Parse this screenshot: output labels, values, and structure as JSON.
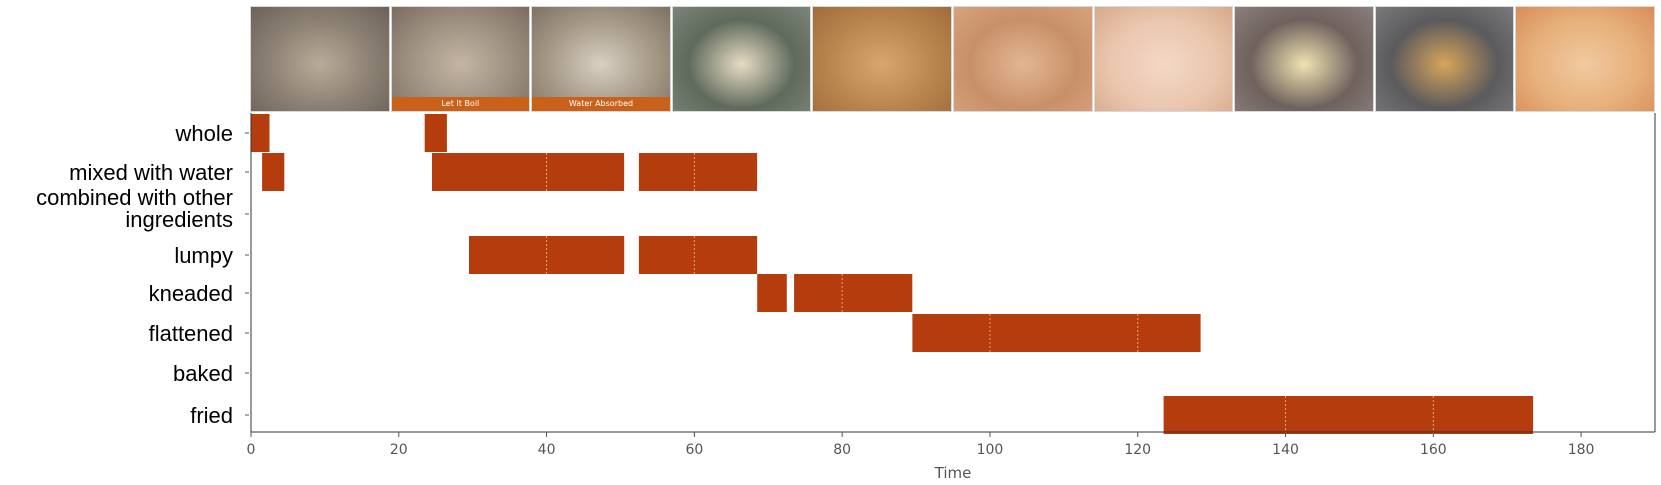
{
  "filmstrip": {
    "frames": [
      {
        "caption": "",
        "colors": [
          "#8a7f72",
          "#b9ab99",
          "#6b6258"
        ]
      },
      {
        "caption": "Let It Boil",
        "colors": [
          "#9c8f80",
          "#c4b6a3",
          "#7a6d60"
        ]
      },
      {
        "caption": "Water Absorbed",
        "colors": [
          "#a49886",
          "#d8cfc2",
          "#7d7263"
        ]
      },
      {
        "caption": "",
        "colors": [
          "#5f6a5c",
          "#e7dcc4",
          "#7b857a"
        ]
      },
      {
        "caption": "",
        "colors": [
          "#b9854e",
          "#d7a66d",
          "#a06b3a"
        ]
      },
      {
        "caption": "",
        "colors": [
          "#c89068",
          "#e3b694",
          "#d6a27d"
        ]
      },
      {
        "caption": "",
        "colors": [
          "#eac6ae",
          "#f3d8c6",
          "#d6a98a"
        ]
      },
      {
        "caption": "",
        "colors": [
          "#6f625e",
          "#efe3b0",
          "#8b7f7b"
        ]
      },
      {
        "caption": "",
        "colors": [
          "#5b5a5c",
          "#d7a55a",
          "#7a7a7c"
        ]
      },
      {
        "caption": "",
        "colors": [
          "#e6b07a",
          "#f1c9a0",
          "#d98c5a"
        ]
      }
    ]
  },
  "chart_data": {
    "type": "gantt",
    "xlabel": "Time",
    "xlim": [
      0,
      190
    ],
    "xticks": [
      0,
      20,
      40,
      60,
      80,
      100,
      120,
      140,
      160,
      180
    ],
    "bar_color": "#b53d0d",
    "rows": [
      {
        "label": "whole",
        "segments": [
          [
            0,
            2.5
          ],
          [
            23.5,
            26.5
          ]
        ]
      },
      {
        "label": "mixed with water",
        "segments": [
          [
            1.5,
            4.5
          ],
          [
            24.5,
            50.5
          ],
          [
            52.5,
            68.5
          ]
        ]
      },
      {
        "label": "combined with other ingredients",
        "segments": []
      },
      {
        "label": "lumpy",
        "segments": [
          [
            29.5,
            50.5
          ],
          [
            52.5,
            68.5
          ]
        ]
      },
      {
        "label": "kneaded",
        "segments": [
          [
            68.5,
            72.5
          ],
          [
            73.5,
            89.5
          ]
        ]
      },
      {
        "label": "flattened",
        "segments": [
          [
            89.5,
            128.5
          ]
        ]
      },
      {
        "label": "baked",
        "segments": []
      },
      {
        "label": "fried",
        "segments": [
          [
            123.5,
            173.5
          ]
        ]
      }
    ]
  }
}
